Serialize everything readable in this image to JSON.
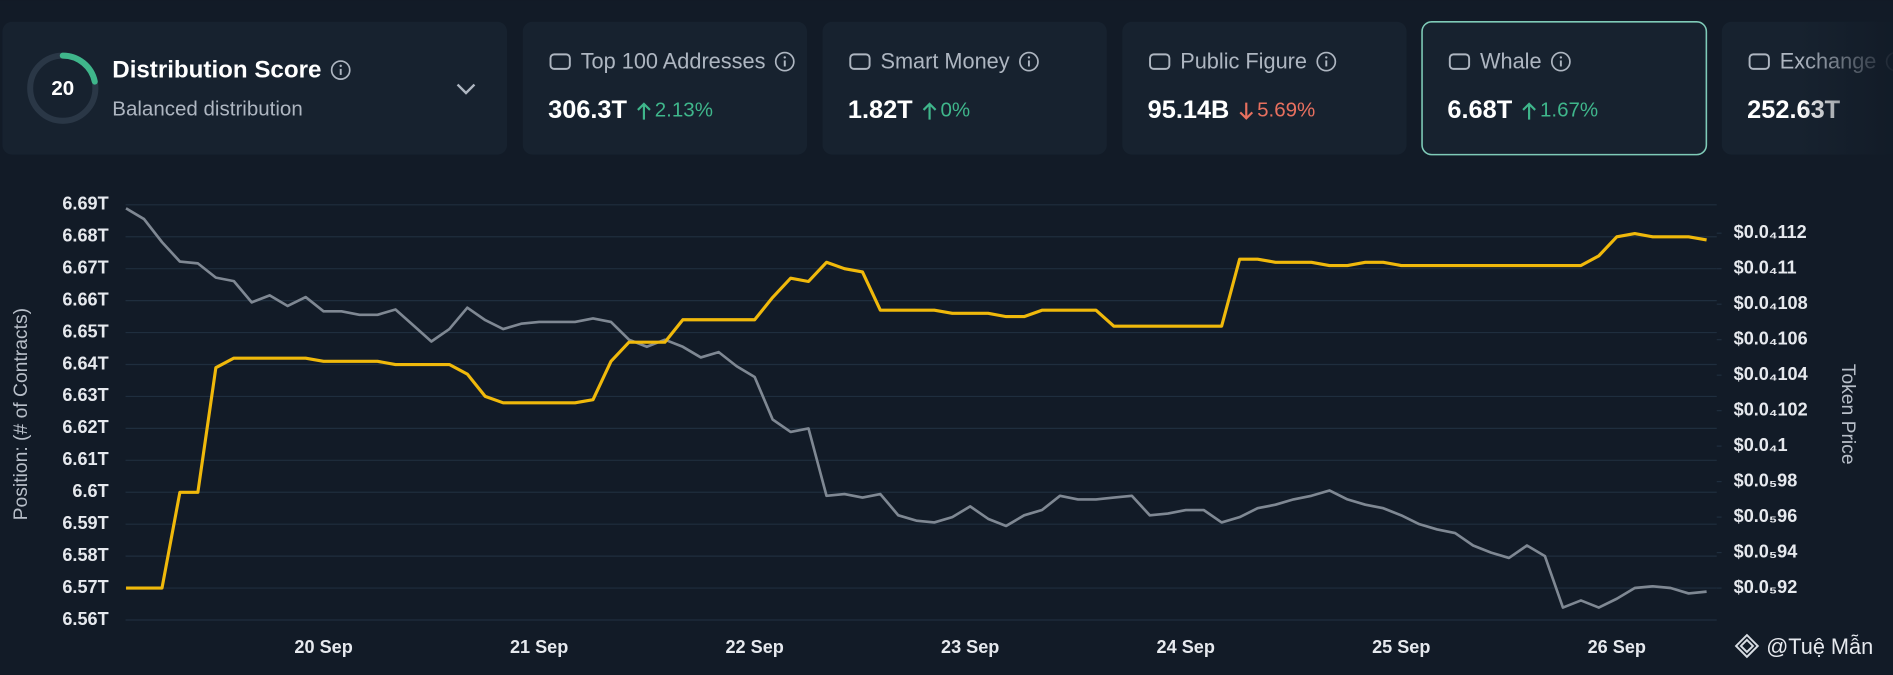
{
  "score_card": {
    "score": 20,
    "title": "Distribution Score",
    "subtitle": "Balanced distribution"
  },
  "metrics": [
    {
      "name": "Top 100 Addresses",
      "value": "306.3T",
      "change": "2.13%",
      "direction": "up"
    },
    {
      "name": "Smart Money",
      "value": "1.82T",
      "change": "0%",
      "direction": "up"
    },
    {
      "name": "Public Figure",
      "value": "95.14B",
      "change": "5.69%",
      "direction": "down"
    },
    {
      "name": "Whale",
      "value": "6.68T",
      "change": "1.67%",
      "direction": "up",
      "selected": true
    },
    {
      "name": "Exchange",
      "value": "252.63T"
    }
  ],
  "watermark": "@Tuệ Mẫn",
  "chart_data": {
    "type": "line",
    "y_label": "Position: (# of Contracts)",
    "y2_label": "Token Price",
    "categories": [
      null,
      null,
      null,
      null,
      null,
      null,
      null,
      null,
      null,
      null,
      null,
      "20 Sep",
      null,
      null,
      null,
      null,
      null,
      null,
      null,
      null,
      null,
      null,
      null,
      "21 Sep",
      null,
      null,
      null,
      null,
      null,
      null,
      null,
      null,
      null,
      null,
      null,
      "22 Sep",
      null,
      null,
      null,
      null,
      null,
      null,
      null,
      null,
      null,
      null,
      null,
      "23 Sep",
      null,
      null,
      null,
      null,
      null,
      null,
      null,
      null,
      null,
      null,
      null,
      "24 Sep",
      null,
      null,
      null,
      null,
      null,
      null,
      null,
      null,
      null,
      null,
      null,
      "25 Sep",
      null,
      null,
      null,
      null,
      null,
      null,
      null,
      null,
      null,
      null,
      null,
      "26 Sep",
      null,
      null,
      null,
      null,
      null
    ],
    "series": [
      {
        "color": "#f0b90b",
        "values": [
          6.57,
          6.57,
          6.57,
          6.6,
          6.6,
          6.639,
          6.642,
          6.642,
          6.642,
          6.642,
          6.642,
          6.641,
          6.641,
          6.641,
          6.641,
          6.64,
          6.64,
          6.64,
          6.64,
          6.637,
          6.63,
          6.628,
          6.628,
          6.628,
          6.628,
          6.628,
          6.629,
          6.641,
          6.647,
          6.647,
          6.647,
          6.654,
          6.654,
          6.654,
          6.654,
          6.654,
          6.661,
          6.667,
          6.666,
          6.672,
          6.67,
          6.669,
          6.657,
          6.657,
          6.657,
          6.657,
          6.656,
          6.656,
          6.656,
          6.655,
          6.655,
          6.657,
          6.657,
          6.657,
          6.657,
          6.652,
          6.652,
          6.652,
          6.652,
          6.652,
          6.652,
          6.652,
          6.673,
          6.673,
          6.672,
          6.672,
          6.672,
          6.671,
          6.671,
          6.672,
          6.672,
          6.671,
          6.671,
          6.671,
          6.671,
          6.671,
          6.671,
          6.671,
          6.671,
          6.671,
          6.671,
          6.671,
          6.674,
          6.68,
          6.681,
          6.68,
          6.68,
          6.68,
          6.679
        ]
      },
      {
        "color": "#7f8893",
        "axis": "y2",
        "values": [
          1.134e-05,
          1.128e-05,
          1.115e-05,
          1.104e-05,
          1.103e-05,
          1.095e-05,
          1.093e-05,
          1.081e-05,
          1.085e-05,
          1.079e-05,
          1.084e-05,
          1.076e-05,
          1.076e-05,
          1.074e-05,
          1.074e-05,
          1.077e-05,
          1.068e-05,
          1.059e-05,
          1.066e-05,
          1.078e-05,
          1.071e-05,
          1.066e-05,
          1.069e-05,
          1.07e-05,
          1.07e-05,
          1.07e-05,
          1.072e-05,
          1.07e-05,
          1.06e-05,
          1.056e-05,
          1.06e-05,
          1.056e-05,
          1.05e-05,
          1.053e-05,
          1.045e-05,
          1.039e-05,
          1.015e-05,
          1.008e-05,
          1.01e-05,
          9.72e-06,
          9.73e-06,
          9.71e-06,
          9.73e-06,
          9.61e-06,
          9.58e-06,
          9.57e-06,
          9.6e-06,
          9.66e-06,
          9.59e-06,
          9.55e-06,
          9.61e-06,
          9.64e-06,
          9.72e-06,
          9.7e-06,
          9.7e-06,
          9.71e-06,
          9.72e-06,
          9.61e-06,
          9.62e-06,
          9.64e-06,
          9.64e-06,
          9.57e-06,
          9.6e-06,
          9.65e-06,
          9.67e-06,
          9.7e-06,
          9.72e-06,
          9.75e-06,
          9.7e-06,
          9.67e-06,
          9.65e-06,
          9.61e-06,
          9.56e-06,
          9.53e-06,
          9.51e-06,
          9.44e-06,
          9.4e-06,
          9.37e-06,
          9.44e-06,
          9.38e-06,
          9.09e-06,
          9.13e-06,
          9.09e-06,
          9.14e-06,
          9.2e-06,
          9.21e-06,
          9.2e-06,
          9.17e-06,
          9.18e-06
        ]
      }
    ],
    "ylim": [
      6.56,
      6.69
    ],
    "yticks": [
      {
        "value": 6.56,
        "label": "6.56T"
      },
      {
        "value": 6.57,
        "label": "6.57T"
      },
      {
        "value": 6.58,
        "label": "6.58T"
      },
      {
        "value": 6.59,
        "label": "6.59T"
      },
      {
        "value": 6.6,
        "label": "6.6T"
      },
      {
        "value": 6.61,
        "label": "6.61T"
      },
      {
        "value": 6.62,
        "label": "6.62T"
      },
      {
        "value": 6.63,
        "label": "6.63T"
      },
      {
        "value": 6.64,
        "label": "6.64T"
      },
      {
        "value": 6.65,
        "label": "6.65T"
      },
      {
        "value": 6.66,
        "label": "6.66T"
      },
      {
        "value": 6.67,
        "label": "6.67T"
      },
      {
        "value": 6.68,
        "label": "6.68T"
      },
      {
        "value": 6.69,
        "label": "6.69T"
      }
    ],
    "y2lim": [
      9.02e-06,
      1.136e-05
    ],
    "y2ticks": [
      {
        "value": 9.2e-06,
        "label": "$0.0₅92"
      },
      {
        "value": 9.4e-06,
        "label": "$0.0₅94"
      },
      {
        "value": 9.6e-06,
        "label": "$0.0₅96"
      },
      {
        "value": 9.8e-06,
        "label": "$0.0₅98"
      },
      {
        "value": 1e-05,
        "label": "$0.0₄1"
      },
      {
        "value": 1.02e-05,
        "label": "$0.0₄102"
      },
      {
        "value": 1.04e-05,
        "label": "$0.0₄104"
      },
      {
        "value": 1.06e-05,
        "label": "$0.0₄106"
      },
      {
        "value": 1.08e-05,
        "label": "$0.0₄108"
      },
      {
        "value": 1.1e-05,
        "label": "$0.0₄11"
      },
      {
        "value": 1.12e-05,
        "label": "$0.0₄112"
      }
    ],
    "grid": true
  }
}
